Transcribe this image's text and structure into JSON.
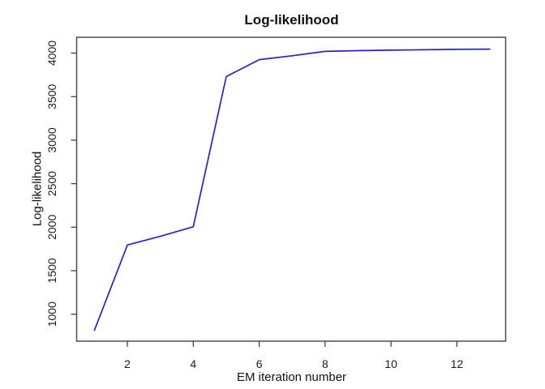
{
  "figure": {
    "background_color": "#ffffff"
  },
  "chart_data": {
    "type": "line",
    "title": "Log-likelihood",
    "xlabel": "EM iteration number",
    "ylabel": "Log-likelihood",
    "x": [
      1,
      2,
      3,
      4,
      5,
      6,
      7,
      8,
      9,
      10,
      11,
      12,
      13
    ],
    "y": [
      815,
      1795,
      1895,
      2005,
      3730,
      3925,
      3970,
      4020,
      4028,
      4034,
      4039,
      4043,
      4046
    ],
    "x_ticks": [
      2,
      4,
      6,
      8,
      10,
      12
    ],
    "y_ticks": [
      1000,
      1500,
      2000,
      2500,
      3000,
      3500,
      4000
    ],
    "xlim": [
      0.46,
      13.48
    ],
    "ylim": [
      690,
      4182
    ],
    "grid": false,
    "legend_position": "none",
    "line_color": "#2222d6",
    "axis_color": "#4d4d4d",
    "tick_color": "#404040",
    "text_color": "#111111"
  }
}
